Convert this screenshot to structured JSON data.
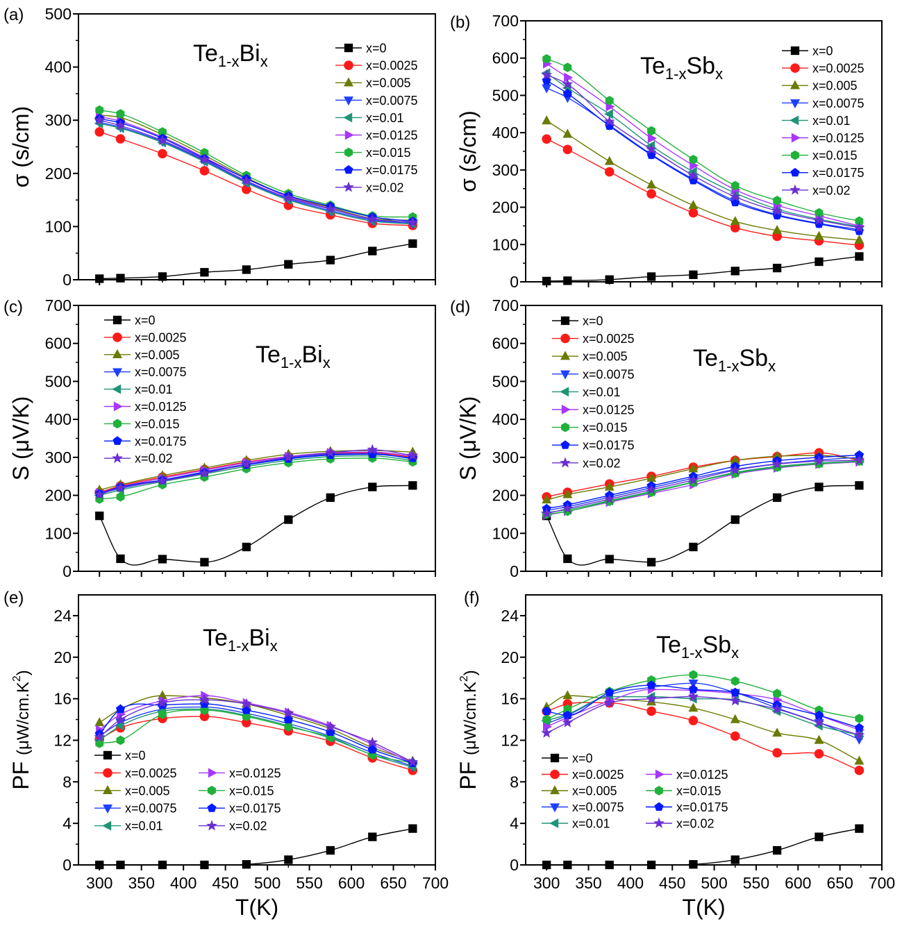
{
  "colors": [
    "#000000",
    "#ff1a1a",
    "#6b7a00",
    "#1f3fff",
    "#1f9477",
    "#a637ff",
    "#1fb13a",
    "#0019ff",
    "#6a2fd0"
  ],
  "markers": [
    "square",
    "circle",
    "triangle-up",
    "triangle-down",
    "triangle-left",
    "triangle-right",
    "hexagon",
    "pentagon",
    "star"
  ],
  "chart_data": [
    {
      "panel": "(a)",
      "type": "line",
      "title": "Te1-xBix",
      "title_parts": [
        "Te",
        "1-x",
        "Bi",
        "x"
      ],
      "xlabel": "",
      "ylabel": "σ (s/cm)",
      "xlim": [
        275,
        700
      ],
      "ylim": [
        0,
        500
      ],
      "yticks": [
        0,
        100,
        200,
        300,
        400,
        500
      ],
      "xticks": [
        300,
        350,
        400,
        450,
        500,
        550,
        600,
        650,
        700
      ],
      "show_xtick_labels": false,
      "legend": "top-right",
      "legend_columns": 1,
      "grid": false,
      "x": [
        300,
        325,
        375,
        425,
        475,
        525,
        575,
        625,
        673
      ],
      "series": [
        {
          "name": "x=0",
          "values": [
            2,
            3,
            6,
            14,
            19,
            29,
            37,
            54,
            68
          ]
        },
        {
          "name": "x=0.0025",
          "values": [
            278,
            265,
            237,
            205,
            170,
            140,
            122,
            106,
            102
          ]
        },
        {
          "name": "x=0.005",
          "values": [
            310,
            305,
            273,
            234,
            192,
            157,
            136,
            115,
            112
          ]
        },
        {
          "name": "x=0.0075",
          "values": [
            296,
            287,
            260,
            224,
            184,
            152,
            130,
            112,
            106
          ]
        },
        {
          "name": "x=0.01",
          "values": [
            294,
            285,
            258,
            222,
            182,
            150,
            128,
            110,
            105
          ]
        },
        {
          "name": "x=0.0125",
          "values": [
            307,
            298,
            268,
            230,
            190,
            156,
            134,
            114,
            108
          ]
        },
        {
          "name": "x=0.015",
          "values": [
            319,
            312,
            278,
            239,
            196,
            162,
            140,
            120,
            118
          ]
        },
        {
          "name": "x=0.0175",
          "values": [
            303,
            295,
            266,
            228,
            190,
            158,
            138,
            118,
            110
          ]
        },
        {
          "name": "x=0.02",
          "values": [
            300,
            290,
            262,
            226,
            186,
            154,
            133,
            114,
            108
          ]
        }
      ]
    },
    {
      "panel": "(b)",
      "type": "line",
      "title": "Te1-xSbx",
      "title_parts": [
        "Te",
        "1-x",
        "Sb",
        "x"
      ],
      "xlabel": "",
      "ylabel": "σ (s/cm)",
      "xlim": [
        275,
        700
      ],
      "ylim": [
        0,
        700
      ],
      "yticks": [
        0,
        100,
        200,
        300,
        400,
        500,
        600,
        700
      ],
      "xticks": [
        300,
        350,
        400,
        450,
        500,
        550,
        600,
        650,
        700
      ],
      "show_xtick_labels": false,
      "legend": "top-right",
      "legend_columns": 1,
      "grid": false,
      "x": [
        300,
        325,
        375,
        425,
        475,
        525,
        575,
        625,
        673
      ],
      "series": [
        {
          "name": "x=0",
          "values": [
            2,
            3,
            6,
            14,
            19,
            29,
            37,
            54,
            68
          ]
        },
        {
          "name": "x=0.0025",
          "values": [
            383,
            355,
            295,
            236,
            185,
            145,
            122,
            110,
            98
          ]
        },
        {
          "name": "x=0.005",
          "values": [
            432,
            396,
            323,
            260,
            205,
            162,
            138,
            122,
            112
          ]
        },
        {
          "name": "x=0.0075",
          "values": [
            520,
            494,
            420,
            342,
            275,
            217,
            180,
            157,
            140
          ]
        },
        {
          "name": "x=0.01",
          "values": [
            560,
            520,
            450,
            365,
            295,
            238,
            195,
            168,
            148
          ]
        },
        {
          "name": "x=0.0125",
          "values": [
            585,
            548,
            470,
            385,
            312,
            247,
            205,
            177,
            150
          ]
        },
        {
          "name": "x=0.015",
          "values": [
            598,
            575,
            486,
            405,
            328,
            258,
            218,
            185,
            163
          ]
        },
        {
          "name": "x=0.0175",
          "values": [
            540,
            505,
            418,
            340,
            272,
            213,
            178,
            155,
            136
          ]
        },
        {
          "name": "x=0.02",
          "values": [
            555,
            530,
            430,
            355,
            285,
            228,
            190,
            165,
            145
          ]
        }
      ]
    },
    {
      "panel": "(c)",
      "type": "line",
      "title": "Te1-xBix",
      "title_parts": [
        "Te",
        "1-x",
        "Bi",
        "x"
      ],
      "xlabel": "",
      "ylabel": "S (μV/K)",
      "xlim": [
        275,
        700
      ],
      "ylim": [
        0,
        700
      ],
      "yticks": [
        0,
        100,
        200,
        300,
        400,
        500,
        600,
        700
      ],
      "xticks": [
        300,
        350,
        400,
        450,
        500,
        550,
        600,
        650,
        700
      ],
      "show_xtick_labels": false,
      "legend": "top-left",
      "legend_columns": 1,
      "grid": false,
      "x": [
        300,
        325,
        375,
        425,
        475,
        525,
        575,
        625,
        673
      ],
      "series": [
        {
          "name": "x=0",
          "values": [
            146,
            33,
            32,
            24,
            64,
            136,
            194,
            222,
            226
          ]
        },
        {
          "name": "x=0.0025",
          "values": [
            208,
            225,
            248,
            268,
            288,
            302,
            310,
            312,
            300
          ]
        },
        {
          "name": "x=0.005",
          "values": [
            214,
            228,
            252,
            272,
            292,
            308,
            316,
            318,
            314
          ]
        },
        {
          "name": "x=0.0075",
          "values": [
            204,
            218,
            240,
            262,
            282,
            298,
            308,
            310,
            296
          ]
        },
        {
          "name": "x=0.01",
          "values": [
            200,
            214,
            236,
            256,
            276,
            292,
            302,
            304,
            292
          ]
        },
        {
          "name": "x=0.0125",
          "values": [
            206,
            222,
            245,
            266,
            286,
            302,
            312,
            314,
            303
          ]
        },
        {
          "name": "x=0.015",
          "values": [
            190,
            196,
            228,
            248,
            270,
            286,
            296,
            298,
            288
          ]
        },
        {
          "name": "x=0.0175",
          "values": [
            204,
            222,
            240,
            260,
            280,
            296,
            306,
            308,
            298
          ]
        },
        {
          "name": "x=0.02",
          "values": [
            202,
            220,
            238,
            258,
            282,
            300,
            312,
            320,
            305
          ]
        }
      ]
    },
    {
      "panel": "(d)",
      "type": "line",
      "title": "Te1-xSbx",
      "title_parts": [
        "Te",
        "1-x",
        "Sb",
        "x"
      ],
      "xlabel": "",
      "ylabel": "S (μV/K)",
      "xlim": [
        275,
        700
      ],
      "ylim": [
        0,
        700
      ],
      "yticks": [
        0,
        100,
        200,
        300,
        400,
        500,
        600,
        700
      ],
      "xticks": [
        300,
        350,
        400,
        450,
        500,
        550,
        600,
        650,
        700
      ],
      "show_xtick_labels": false,
      "legend": "top-left",
      "legend_columns": 1,
      "grid": false,
      "x": [
        300,
        325,
        375,
        425,
        475,
        525,
        575,
        625,
        673
      ],
      "series": [
        {
          "name": "x=0",
          "values": [
            146,
            33,
            32,
            24,
            64,
            136,
            194,
            222,
            226
          ]
        },
        {
          "name": "x=0.0025",
          "values": [
            196,
            208,
            230,
            250,
            274,
            292,
            302,
            312,
            292
          ]
        },
        {
          "name": "x=0.005",
          "values": [
            188,
            202,
            222,
            245,
            270,
            292,
            303,
            305,
            296
          ]
        },
        {
          "name": "x=0.0075",
          "values": [
            160,
            170,
            195,
            220,
            245,
            268,
            283,
            293,
            300
          ]
        },
        {
          "name": "x=0.01",
          "values": [
            155,
            162,
            186,
            210,
            235,
            260,
            276,
            285,
            290
          ]
        },
        {
          "name": "x=0.0125",
          "values": [
            148,
            158,
            182,
            205,
            228,
            256,
            272,
            282,
            288
          ]
        },
        {
          "name": "x=0.015",
          "values": [
            150,
            158,
            184,
            208,
            234,
            258,
            274,
            283,
            290
          ]
        },
        {
          "name": "x=0.0175",
          "values": [
            165,
            175,
            200,
            225,
            250,
            276,
            291,
            300,
            306
          ]
        },
        {
          "name": "x=0.02",
          "values": [
            152,
            165,
            190,
            215,
            240,
            266,
            282,
            290,
            292
          ]
        }
      ]
    },
    {
      "panel": "(e)",
      "type": "line",
      "title": "Te1-xBix",
      "title_parts": [
        "Te",
        "1-x",
        "Bi",
        "x"
      ],
      "xlabel": "T(K)",
      "ylabel": "PF (μW/cm.K²)",
      "ylabel_parts": [
        "PF ",
        "(μW/cm.K",
        "2",
        ")"
      ],
      "xlim": [
        275,
        700
      ],
      "ylim": [
        0,
        26
      ],
      "yticks": [
        0,
        4,
        8,
        12,
        16,
        20,
        24
      ],
      "xticks": [
        300,
        350,
        400,
        450,
        500,
        550,
        600,
        650,
        700
      ],
      "show_xtick_labels": true,
      "legend": "bottom-left",
      "legend_columns": 2,
      "grid": false,
      "x": [
        300,
        325,
        375,
        425,
        475,
        525,
        575,
        625,
        673
      ],
      "series": [
        {
          "name": "x=0",
          "values": [
            0.0,
            0.0,
            0.0,
            0.0,
            0.05,
            0.5,
            1.4,
            2.7,
            3.5
          ]
        },
        {
          "name": "x=0.0025",
          "values": [
            12.1,
            13.2,
            14.1,
            14.3,
            13.7,
            12.9,
            11.9,
            10.3,
            9.1
          ]
        },
        {
          "name": "x=0.005",
          "values": [
            13.7,
            15.0,
            16.3,
            16.1,
            15.5,
            14.4,
            13.1,
            11.3,
            10.0
          ]
        },
        {
          "name": "x=0.0075",
          "values": [
            12.4,
            13.7,
            15.0,
            15.2,
            14.6,
            13.6,
            12.4,
            10.8,
            9.5
          ]
        },
        {
          "name": "x=0.01",
          "values": [
            12.0,
            13.4,
            14.8,
            15.0,
            14.4,
            13.4,
            12.2,
            10.6,
            9.4
          ]
        },
        {
          "name": "x=0.0125",
          "values": [
            13.0,
            14.5,
            15.8,
            16.3,
            15.6,
            14.7,
            13.4,
            11.6,
            9.8
          ]
        },
        {
          "name": "x=0.015",
          "values": [
            11.7,
            12.0,
            14.5,
            14.9,
            14.3,
            13.3,
            12.3,
            10.6,
            9.8
          ]
        },
        {
          "name": "x=0.0175",
          "values": [
            12.6,
            15.0,
            15.4,
            15.5,
            14.9,
            14.0,
            12.8,
            11.1,
            9.8
          ]
        },
        {
          "name": "x=0.02",
          "values": [
            12.3,
            14.0,
            15.6,
            15.9,
            15.5,
            14.6,
            13.3,
            11.8,
            9.9
          ]
        }
      ]
    },
    {
      "panel": "(f)",
      "type": "line",
      "title": "Te1-xSbx",
      "title_parts": [
        "Te",
        "1-x",
        "Sb",
        "x"
      ],
      "xlabel": "T(K)",
      "ylabel": "PF (μW/cm.K²)",
      "ylabel_parts": [
        "PF ",
        "(μW/cm.K",
        "2",
        ")"
      ],
      "xlim": [
        275,
        700
      ],
      "ylim": [
        0,
        26
      ],
      "yticks": [
        0,
        4,
        8,
        12,
        16,
        20,
        24
      ],
      "xticks": [
        300,
        350,
        400,
        450,
        500,
        550,
        600,
        650,
        700
      ],
      "show_xtick_labels": true,
      "legend": "bottom-left",
      "legend_columns": 2,
      "grid": false,
      "x": [
        300,
        325,
        375,
        425,
        475,
        525,
        575,
        625,
        673
      ],
      "series": [
        {
          "name": "x=0",
          "values": [
            0.0,
            0.0,
            0.0,
            0.0,
            0.05,
            0.5,
            1.4,
            2.7,
            3.5
          ]
        },
        {
          "name": "x=0.0025",
          "values": [
            14.8,
            15.5,
            15.6,
            14.8,
            13.9,
            12.4,
            10.8,
            10.7,
            9.1
          ]
        },
        {
          "name": "x=0.005",
          "values": [
            15.2,
            16.3,
            16.0,
            15.7,
            15.1,
            14.0,
            12.7,
            12.0,
            10.0
          ]
        },
        {
          "name": "x=0.0075",
          "values": [
            13.6,
            14.4,
            16.4,
            17.1,
            17.5,
            16.6,
            15.1,
            13.7,
            12.1
          ]
        },
        {
          "name": "x=0.01",
          "values": [
            13.9,
            14.5,
            16.2,
            16.2,
            16.0,
            15.9,
            14.8,
            13.4,
            12.5
          ]
        },
        {
          "name": "x=0.0125",
          "values": [
            13.3,
            14.2,
            15.8,
            16.9,
            16.8,
            16.5,
            15.9,
            14.4,
            13.0
          ]
        },
        {
          "name": "x=0.015",
          "values": [
            14.0,
            15.0,
            16.7,
            17.8,
            18.3,
            17.7,
            16.5,
            14.9,
            14.1
          ]
        },
        {
          "name": "x=0.0175",
          "values": [
            14.8,
            14.4,
            16.6,
            17.3,
            16.9,
            16.6,
            15.4,
            14.4,
            13.2
          ]
        },
        {
          "name": "x=0.02",
          "values": [
            12.7,
            13.7,
            15.6,
            16.0,
            16.2,
            15.8,
            15.0,
            13.7,
            12.5
          ]
        }
      ]
    }
  ]
}
